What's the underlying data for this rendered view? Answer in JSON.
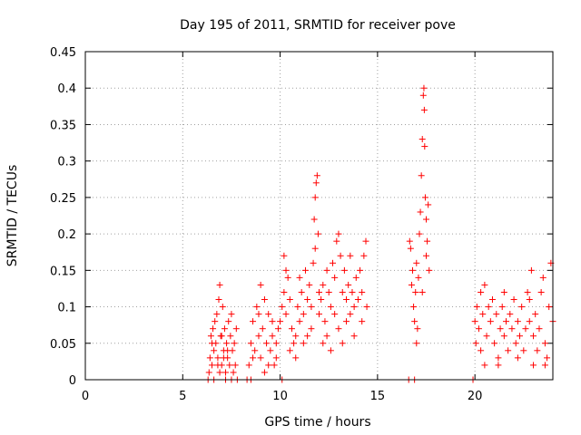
{
  "chart_data": {
    "type": "scatter",
    "title": "Day 195 of 2011, SRMTID for receiver pove",
    "xlabel": "GPS time / hours",
    "ylabel": "SRMTID / TECUs",
    "xlim": [
      0,
      24
    ],
    "ylim": [
      0,
      0.45
    ],
    "xticks": [
      0,
      5,
      10,
      15,
      20
    ],
    "xtick_labels": [
      "0",
      "5",
      "10",
      "15",
      "20"
    ],
    "yticks": [
      0,
      0.05,
      0.1,
      0.15,
      0.2,
      0.25,
      0.3,
      0.35,
      0.4,
      0.45
    ],
    "ytick_labels": [
      "0",
      "0.05",
      "0.1",
      "0.15",
      "0.2",
      "0.25",
      "0.3",
      "0.35",
      "0.4",
      "0.45"
    ],
    "grid": true,
    "marker": "+",
    "color": "#ff0000",
    "series": [
      {
        "name": "SRMTID",
        "points": [
          [
            6.3,
            0.0
          ],
          [
            6.35,
            0.01
          ],
          [
            6.4,
            0.03
          ],
          [
            6.45,
            0.06
          ],
          [
            6.5,
            0.02
          ],
          [
            6.55,
            0.07
          ],
          [
            6.6,
            0.04
          ],
          [
            6.65,
            0.08
          ],
          [
            6.7,
            0.05
          ],
          [
            6.75,
            0.09
          ],
          [
            6.8,
            0.03
          ],
          [
            6.85,
            0.11
          ],
          [
            6.9,
            0.13
          ],
          [
            6.95,
            0.06
          ],
          [
            7.0,
            0.02
          ],
          [
            7.05,
            0.1
          ],
          [
            7.1,
            0.04
          ],
          [
            7.15,
            0.07
          ],
          [
            7.2,
            0.01
          ],
          [
            7.25,
            0.05
          ],
          [
            7.3,
            0.03
          ],
          [
            7.35,
            0.08
          ],
          [
            7.4,
            0.02
          ],
          [
            7.45,
            0.06
          ],
          [
            7.5,
            0.09
          ],
          [
            7.55,
            0.04
          ],
          [
            7.6,
            0.01
          ],
          [
            7.65,
            0.05
          ],
          [
            7.7,
            0.02
          ],
          [
            7.75,
            0.07
          ],
          [
            7.8,
            0.0
          ],
          [
            6.6,
            0.0
          ],
          [
            6.9,
            0.01
          ],
          [
            7.2,
            0.0
          ],
          [
            7.5,
            0.0
          ],
          [
            6.5,
            0.05
          ],
          [
            7.0,
            0.06
          ],
          [
            7.3,
            0.04
          ],
          [
            6.8,
            0.02
          ],
          [
            7.1,
            0.03
          ],
          [
            8.3,
            0.0
          ],
          [
            8.4,
            0.02
          ],
          [
            8.5,
            0.05
          ],
          [
            8.6,
            0.08
          ],
          [
            8.7,
            0.04
          ],
          [
            8.8,
            0.1
          ],
          [
            8.9,
            0.06
          ],
          [
            9.0,
            0.03
          ],
          [
            9.1,
            0.07
          ],
          [
            9.2,
            0.11
          ],
          [
            9.3,
            0.05
          ],
          [
            9.4,
            0.09
          ],
          [
            9.5,
            0.04
          ],
          [
            9.6,
            0.06
          ],
          [
            9.7,
            0.02
          ],
          [
            9.8,
            0.05
          ],
          [
            9.9,
            0.07
          ],
          [
            9.0,
            0.13
          ],
          [
            8.6,
            0.03
          ],
          [
            9.4,
            0.02
          ],
          [
            8.9,
            0.09
          ],
          [
            9.2,
            0.01
          ],
          [
            9.6,
            0.08
          ],
          [
            8.5,
            0.0
          ],
          [
            9.8,
            0.03
          ],
          [
            10.0,
            0.08
          ],
          [
            10.1,
            0.1
          ],
          [
            10.2,
            0.12
          ],
          [
            10.3,
            0.09
          ],
          [
            10.4,
            0.14
          ],
          [
            10.5,
            0.11
          ],
          [
            10.6,
            0.07
          ],
          [
            10.7,
            0.05
          ],
          [
            10.8,
            0.06
          ],
          [
            10.9,
            0.1
          ],
          [
            11.0,
            0.08
          ],
          [
            11.1,
            0.12
          ],
          [
            11.2,
            0.09
          ],
          [
            11.3,
            0.15
          ],
          [
            11.4,
            0.11
          ],
          [
            11.5,
            0.13
          ],
          [
            11.6,
            0.1
          ],
          [
            11.7,
            0.16
          ],
          [
            11.75,
            0.22
          ],
          [
            11.8,
            0.25
          ],
          [
            11.85,
            0.27
          ],
          [
            11.9,
            0.28
          ],
          [
            11.95,
            0.2
          ],
          [
            12.0,
            0.12
          ],
          [
            10.2,
            0.17
          ],
          [
            10.1,
            0.0
          ],
          [
            10.5,
            0.04
          ],
          [
            10.8,
            0.03
          ],
          [
            11.2,
            0.05
          ],
          [
            11.6,
            0.07
          ],
          [
            10.3,
            0.15
          ],
          [
            11.0,
            0.14
          ],
          [
            11.4,
            0.06
          ],
          [
            11.8,
            0.18
          ],
          [
            12.0,
            0.09
          ],
          [
            12.1,
            0.11
          ],
          [
            12.2,
            0.13
          ],
          [
            12.3,
            0.08
          ],
          [
            12.4,
            0.15
          ],
          [
            12.5,
            0.12
          ],
          [
            12.6,
            0.1
          ],
          [
            12.7,
            0.16
          ],
          [
            12.8,
            0.14
          ],
          [
            12.9,
            0.19
          ],
          [
            13.0,
            0.2
          ],
          [
            13.1,
            0.17
          ],
          [
            13.2,
            0.12
          ],
          [
            13.3,
            0.15
          ],
          [
            13.4,
            0.11
          ],
          [
            13.5,
            0.13
          ],
          [
            13.6,
            0.09
          ],
          [
            13.7,
            0.12
          ],
          [
            13.8,
            0.1
          ],
          [
            13.9,
            0.14
          ],
          [
            14.0,
            0.11
          ],
          [
            14.1,
            0.15
          ],
          [
            14.2,
            0.12
          ],
          [
            14.3,
            0.17
          ],
          [
            14.4,
            0.19
          ],
          [
            14.45,
            0.1
          ],
          [
            12.2,
            0.05
          ],
          [
            12.6,
            0.04
          ],
          [
            13.0,
            0.07
          ],
          [
            13.4,
            0.08
          ],
          [
            13.8,
            0.06
          ],
          [
            14.2,
            0.08
          ],
          [
            12.4,
            0.06
          ],
          [
            12.8,
            0.09
          ],
          [
            13.2,
            0.05
          ],
          [
            13.6,
            0.17
          ],
          [
            16.6,
            0.0
          ],
          [
            16.65,
            0.19
          ],
          [
            16.7,
            0.18
          ],
          [
            16.75,
            0.13
          ],
          [
            16.8,
            0.15
          ],
          [
            16.85,
            0.1
          ],
          [
            16.9,
            0.08
          ],
          [
            16.95,
            0.12
          ],
          [
            17.0,
            0.16
          ],
          [
            17.05,
            0.07
          ],
          [
            17.1,
            0.14
          ],
          [
            17.15,
            0.2
          ],
          [
            17.2,
            0.23
          ],
          [
            17.25,
            0.28
          ],
          [
            17.3,
            0.33
          ],
          [
            17.35,
            0.39
          ],
          [
            17.38,
            0.4
          ],
          [
            17.4,
            0.37
          ],
          [
            17.42,
            0.32
          ],
          [
            17.45,
            0.25
          ],
          [
            17.5,
            0.22
          ],
          [
            17.55,
            0.19
          ],
          [
            17.6,
            0.24
          ],
          [
            17.65,
            0.15
          ],
          [
            17.0,
            0.05
          ],
          [
            17.3,
            0.12
          ],
          [
            17.5,
            0.17
          ],
          [
            16.9,
            0.0
          ],
          [
            19.9,
            0.0
          ],
          [
            20.0,
            0.08
          ],
          [
            20.05,
            0.05
          ],
          [
            20.1,
            0.1
          ],
          [
            20.2,
            0.07
          ],
          [
            20.3,
            0.12
          ],
          [
            20.4,
            0.09
          ],
          [
            20.5,
            0.13
          ],
          [
            20.6,
            0.06
          ],
          [
            20.7,
            0.1
          ],
          [
            20.8,
            0.08
          ],
          [
            20.9,
            0.11
          ],
          [
            21.0,
            0.05
          ],
          [
            21.1,
            0.09
          ],
          [
            21.2,
            0.03
          ],
          [
            21.3,
            0.07
          ],
          [
            21.4,
            0.1
          ],
          [
            21.5,
            0.06
          ],
          [
            21.6,
            0.08
          ],
          [
            21.7,
            0.04
          ],
          [
            21.8,
            0.09
          ],
          [
            21.9,
            0.07
          ],
          [
            22.0,
            0.11
          ],
          [
            22.1,
            0.05
          ],
          [
            22.2,
            0.08
          ],
          [
            22.3,
            0.06
          ],
          [
            22.4,
            0.1
          ],
          [
            22.5,
            0.04
          ],
          [
            22.6,
            0.07
          ],
          [
            22.7,
            0.12
          ],
          [
            22.8,
            0.08
          ],
          [
            22.9,
            0.15
          ],
          [
            23.0,
            0.06
          ],
          [
            23.1,
            0.09
          ],
          [
            23.2,
            0.04
          ],
          [
            23.3,
            0.07
          ],
          [
            23.4,
            0.12
          ],
          [
            23.5,
            0.14
          ],
          [
            23.6,
            0.05
          ],
          [
            23.7,
            0.03
          ],
          [
            23.8,
            0.1
          ],
          [
            23.9,
            0.16
          ],
          [
            24.0,
            0.08
          ],
          [
            20.5,
            0.02
          ],
          [
            21.2,
            0.02
          ],
          [
            22.2,
            0.03
          ],
          [
            23.0,
            0.02
          ],
          [
            23.6,
            0.02
          ],
          [
            20.3,
            0.04
          ],
          [
            21.5,
            0.12
          ],
          [
            22.8,
            0.11
          ]
        ]
      }
    ]
  }
}
